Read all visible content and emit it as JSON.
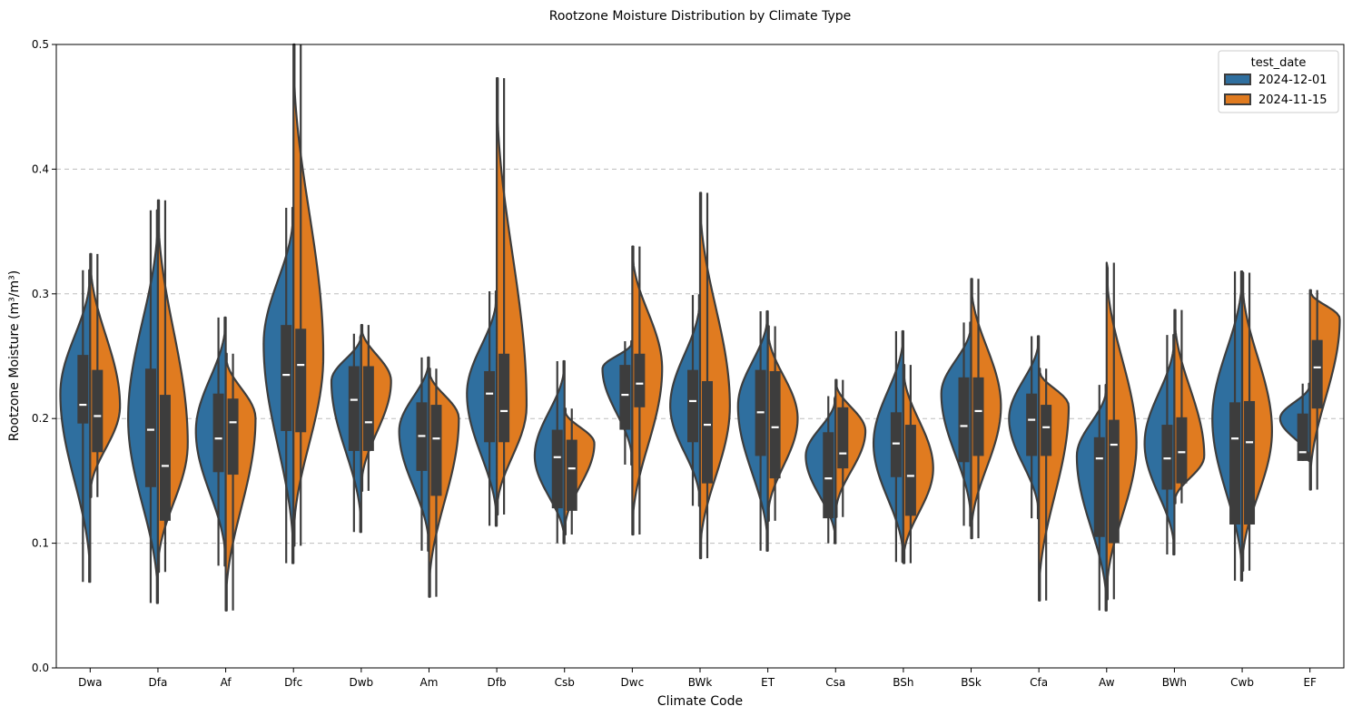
{
  "chart_data": {
    "type": "violin",
    "title": "Rootzone Moisture Distribution by Climate Type",
    "xlabel": "Climate Code",
    "ylabel": "Rootzone Moisture (m³/m³)",
    "ylim": [
      0,
      0.5
    ],
    "yticks": [
      "0.0",
      "0.1",
      "0.2",
      "0.3",
      "0.4",
      "0.5"
    ],
    "grid": "horizontal dashed",
    "legend": {
      "title": "test_date",
      "placement": "top-right"
    },
    "categories": [
      "Dwa",
      "Dfa",
      "Af",
      "Dfc",
      "Dwb",
      "Am",
      "Dfb",
      "Csb",
      "Dwc",
      "BWk",
      "ET",
      "Csa",
      "BSh",
      "BSk",
      "Cfa",
      "Aw",
      "BWh",
      "Cwb",
      "EF"
    ],
    "series": [
      {
        "name": "2024-12-01",
        "color": "#2f6f9f",
        "stats": [
          {
            "min": 0.069,
            "q1": 0.196,
            "median": 0.211,
            "q3": 0.251,
            "max": 0.319,
            "peak": 0.22
          },
          {
            "min": 0.052,
            "q1": 0.145,
            "median": 0.191,
            "q3": 0.24,
            "max": 0.367,
            "peak": 0.2
          },
          {
            "min": 0.082,
            "q1": 0.157,
            "median": 0.184,
            "q3": 0.22,
            "max": 0.281,
            "peak": 0.19
          },
          {
            "min": 0.084,
            "q1": 0.19,
            "median": 0.235,
            "q3": 0.275,
            "max": 0.369,
            "peak": 0.26
          },
          {
            "min": 0.109,
            "q1": 0.174,
            "median": 0.215,
            "q3": 0.242,
            "max": 0.268,
            "peak": 0.23
          },
          {
            "min": 0.094,
            "q1": 0.158,
            "median": 0.186,
            "q3": 0.213,
            "max": 0.249,
            "peak": 0.19
          },
          {
            "min": 0.114,
            "q1": 0.181,
            "median": 0.22,
            "q3": 0.238,
            "max": 0.302,
            "peak": 0.22
          },
          {
            "min": 0.1,
            "q1": 0.128,
            "median": 0.169,
            "q3": 0.191,
            "max": 0.246,
            "peak": 0.17
          },
          {
            "min": 0.163,
            "q1": 0.191,
            "median": 0.219,
            "q3": 0.243,
            "max": 0.262,
            "peak": 0.24
          },
          {
            "min": 0.13,
            "q1": 0.181,
            "median": 0.214,
            "q3": 0.239,
            "max": 0.299,
            "peak": 0.21
          },
          {
            "min": 0.094,
            "q1": 0.17,
            "median": 0.205,
            "q3": 0.239,
            "max": 0.286,
            "peak": 0.21
          },
          {
            "min": 0.1,
            "q1": 0.12,
            "median": 0.152,
            "q3": 0.189,
            "max": 0.218,
            "peak": 0.17
          },
          {
            "min": 0.085,
            "q1": 0.153,
            "median": 0.18,
            "q3": 0.205,
            "max": 0.27,
            "peak": 0.18
          },
          {
            "min": 0.114,
            "q1": 0.165,
            "median": 0.194,
            "q3": 0.233,
            "max": 0.277,
            "peak": 0.22
          },
          {
            "min": 0.12,
            "q1": 0.17,
            "median": 0.199,
            "q3": 0.22,
            "max": 0.266,
            "peak": 0.2
          },
          {
            "min": 0.046,
            "q1": 0.105,
            "median": 0.168,
            "q3": 0.185,
            "max": 0.227,
            "peak": 0.17
          },
          {
            "min": 0.091,
            "q1": 0.143,
            "median": 0.168,
            "q3": 0.195,
            "max": 0.267,
            "peak": 0.18
          },
          {
            "min": 0.07,
            "q1": 0.115,
            "median": 0.184,
            "q3": 0.213,
            "max": 0.318,
            "peak": 0.2
          },
          {
            "min": 0.166,
            "q1": 0.166,
            "median": 0.173,
            "q3": 0.204,
            "max": 0.228,
            "peak": 0.2
          }
        ]
      },
      {
        "name": "2024-11-15",
        "color": "#e07b20",
        "stats": [
          {
            "min": 0.137,
            "q1": 0.173,
            "median": 0.202,
            "q3": 0.239,
            "max": 0.332,
            "peak": 0.21
          },
          {
            "min": 0.077,
            "q1": 0.118,
            "median": 0.162,
            "q3": 0.219,
            "max": 0.375,
            "peak": 0.18
          },
          {
            "min": 0.046,
            "q1": 0.155,
            "median": 0.197,
            "q3": 0.216,
            "max": 0.252,
            "peak": 0.2
          },
          {
            "min": 0.098,
            "q1": 0.189,
            "median": 0.243,
            "q3": 0.272,
            "max": 0.5,
            "peak": 0.25
          },
          {
            "min": 0.142,
            "q1": 0.174,
            "median": 0.197,
            "q3": 0.242,
            "max": 0.275,
            "peak": 0.23
          },
          {
            "min": 0.057,
            "q1": 0.138,
            "median": 0.184,
            "q3": 0.211,
            "max": 0.24,
            "peak": 0.2
          },
          {
            "min": 0.123,
            "q1": 0.181,
            "median": 0.206,
            "q3": 0.252,
            "max": 0.473,
            "peak": 0.21
          },
          {
            "min": 0.107,
            "q1": 0.126,
            "median": 0.16,
            "q3": 0.183,
            "max": 0.208,
            "peak": 0.18
          },
          {
            "min": 0.107,
            "q1": 0.209,
            "median": 0.228,
            "q3": 0.252,
            "max": 0.338,
            "peak": 0.24
          },
          {
            "min": 0.088,
            "q1": 0.148,
            "median": 0.195,
            "q3": 0.23,
            "max": 0.381,
            "peak": 0.21
          },
          {
            "min": 0.118,
            "q1": 0.152,
            "median": 0.193,
            "q3": 0.238,
            "max": 0.274,
            "peak": 0.2
          },
          {
            "min": 0.121,
            "q1": 0.16,
            "median": 0.172,
            "q3": 0.209,
            "max": 0.231,
            "peak": 0.19
          },
          {
            "min": 0.084,
            "q1": 0.122,
            "median": 0.154,
            "q3": 0.195,
            "max": 0.243,
            "peak": 0.16
          },
          {
            "min": 0.104,
            "q1": 0.17,
            "median": 0.206,
            "q3": 0.233,
            "max": 0.312,
            "peak": 0.21
          },
          {
            "min": 0.054,
            "q1": 0.17,
            "median": 0.193,
            "q3": 0.211,
            "max": 0.24,
            "peak": 0.21
          },
          {
            "min": 0.055,
            "q1": 0.1,
            "median": 0.179,
            "q3": 0.199,
            "max": 0.325,
            "peak": 0.18
          },
          {
            "min": 0.132,
            "q1": 0.148,
            "median": 0.173,
            "q3": 0.201,
            "max": 0.287,
            "peak": 0.17
          },
          {
            "min": 0.078,
            "q1": 0.115,
            "median": 0.181,
            "q3": 0.214,
            "max": 0.317,
            "peak": 0.19
          },
          {
            "min": 0.143,
            "q1": 0.208,
            "median": 0.241,
            "q3": 0.263,
            "max": 0.303,
            "peak": 0.28
          }
        ]
      }
    ]
  }
}
